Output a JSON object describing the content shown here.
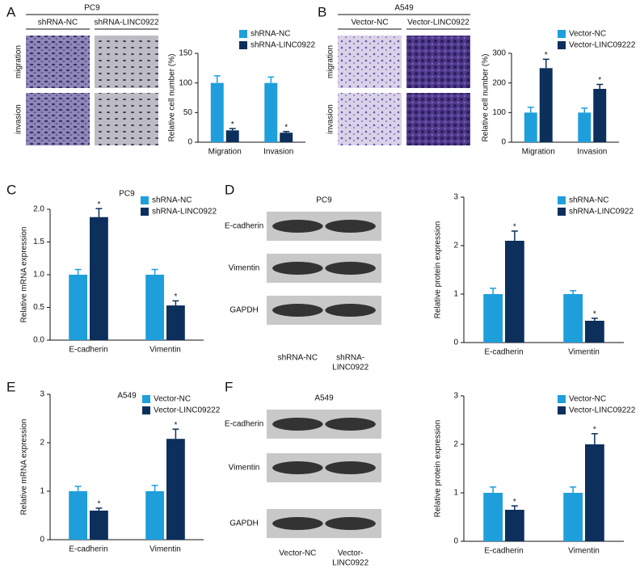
{
  "panel_labels": [
    "A",
    "B",
    "C",
    "D",
    "E",
    "F"
  ],
  "images": [
    {
      "title": "PC9",
      "columns": [
        [
          "shRNA-NC"
        ],
        [
          "shRNA-LINC0922"
        ]
      ],
      "rows": [
        "migration",
        "invasion"
      ],
      "kind": "stain"
    },
    {
      "title": "A549",
      "columns": [
        [
          "Vector-NC"
        ],
        [
          "Vector-LINC0922"
        ]
      ],
      "rows": [
        "migration",
        "invasion"
      ],
      "kind": "stain"
    },
    {
      "title": "PC9",
      "columns": [
        [
          "shRNA-NC"
        ],
        [
          "shRNA-",
          "LINC0922"
        ]
      ],
      "rows": [
        "E-cadherin",
        "Vimentin",
        "GAPDH"
      ],
      "kind": "blot"
    },
    {
      "title": "A549",
      "columns": [
        [
          "Vector-NC"
        ],
        [
          "Vector-",
          "LINC0922"
        ]
      ],
      "rows": [
        "E-cadherin",
        "Vimentin",
        "GAPDH"
      ],
      "kind": "blot"
    }
  ],
  "chart_data": [
    {
      "type": "bar",
      "ylabel": "Relative cell number (%)",
      "categories": [
        "Migration",
        "Invasion"
      ],
      "series": [
        {
          "name": "shRNA-NC",
          "color": "#1e9fdc",
          "values": [
            100,
            100
          ],
          "errors": [
            12,
            10
          ]
        },
        {
          "name": "shRNA-LINC0922",
          "color": "#0c2f5c",
          "values": [
            20,
            16
          ],
          "errors": [
            3,
            2
          ],
          "significance": [
            "*",
            "*"
          ]
        }
      ],
      "ylim": [
        0,
        150
      ],
      "yticks": [
        0,
        50,
        100,
        150
      ],
      "legend": "upper right"
    },
    {
      "type": "bar",
      "ylabel": "Relative cell number (%)",
      "categories": [
        "Migration",
        "Invasion"
      ],
      "series": [
        {
          "name": "Vector-NC",
          "color": "#1e9fdc",
          "values": [
            100,
            100
          ],
          "errors": [
            18,
            15
          ]
        },
        {
          "name": "Vector-LINC09222",
          "color": "#0c2f5c",
          "values": [
            250,
            180
          ],
          "errors": [
            30,
            15
          ],
          "significance": [
            "*",
            "*"
          ]
        }
      ],
      "ylim": [
        0,
        300
      ],
      "yticks": [
        0,
        100,
        200,
        300
      ],
      "legend": "upper right"
    },
    {
      "type": "bar",
      "title": "PC9",
      "ylabel": "Relative mRNA expression",
      "categories": [
        "E-cadherin",
        "Vimentin"
      ],
      "series": [
        {
          "name": "shRNA-NC",
          "color": "#1e9fdc",
          "values": [
            1.0,
            1.0
          ],
          "errors": [
            0.08,
            0.08
          ]
        },
        {
          "name": "shRNA-LINC0922",
          "color": "#0c2f5c",
          "values": [
            1.88,
            0.53
          ],
          "errors": [
            0.13,
            0.07
          ],
          "significance": [
            "*",
            "*"
          ]
        }
      ],
      "ylim": [
        0,
        2.0
      ],
      "yticks": [
        {
          "value": 0,
          "label": "0.0"
        },
        0.5,
        {
          "value": 1,
          "label": "1.0"
        },
        1.5,
        {
          "value": 2,
          "label": "2.0"
        }
      ],
      "legend": "upper right"
    },
    {
      "type": "bar",
      "ylabel": "Relative protein expression",
      "categories": [
        "E-cadherin",
        "Vimentin"
      ],
      "series": [
        {
          "name": "shRNA-NC",
          "color": "#1e9fdc",
          "values": [
            1.0,
            1.0
          ],
          "errors": [
            0.12,
            0.07
          ]
        },
        {
          "name": "shRNA-LINC0922",
          "color": "#0c2f5c",
          "values": [
            2.1,
            0.45
          ],
          "errors": [
            0.2,
            0.05
          ],
          "significance": [
            "*",
            "*"
          ]
        }
      ],
      "ylim": [
        0,
        3
      ],
      "yticks": [
        0,
        1,
        2,
        3
      ],
      "legend": "upper right"
    },
    {
      "type": "bar",
      "title": "A549",
      "ylabel": "Relative mRNA expression",
      "categories": [
        "E-cadherin",
        "Vimentin"
      ],
      "series": [
        {
          "name": "Vector-NC",
          "color": "#1e9fdc",
          "values": [
            1.0,
            1.0
          ],
          "errors": [
            0.1,
            0.12
          ]
        },
        {
          "name": "Vector-LINC09222",
          "color": "#0c2f5c",
          "values": [
            0.6,
            2.08
          ],
          "errors": [
            0.05,
            0.2
          ],
          "significance": [
            "*",
            "*"
          ]
        }
      ],
      "ylim": [
        0,
        3
      ],
      "yticks": [
        0,
        1,
        2,
        3
      ],
      "legend": "upper right"
    },
    {
      "type": "bar",
      "ylabel": "Relative protein expression",
      "categories": [
        "E-cadherin",
        "Vimentin"
      ],
      "series": [
        {
          "name": "Vector-NC",
          "color": "#1e9fdc",
          "values": [
            1.0,
            1.0
          ],
          "errors": [
            0.12,
            0.12
          ]
        },
        {
          "name": "Vector-LINC09222",
          "color": "#0c2f5c",
          "values": [
            0.65,
            2.0
          ],
          "errors": [
            0.08,
            0.22
          ],
          "significance": [
            "*",
            "*"
          ]
        }
      ],
      "ylim": [
        0,
        3
      ],
      "yticks": [
        0,
        1,
        2,
        3
      ],
      "legend": "upper right"
    }
  ]
}
